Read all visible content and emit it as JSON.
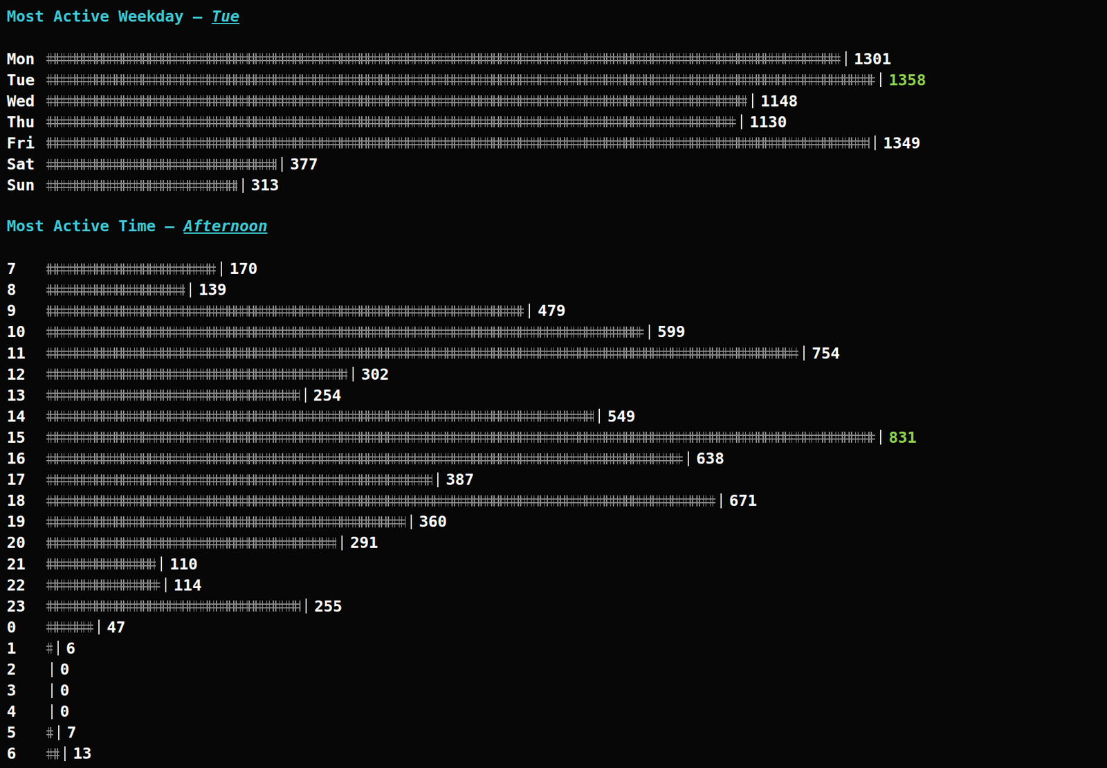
{
  "chart_data": [
    {
      "type": "bar",
      "orientation": "horizontal",
      "title": "Most Active Weekday –",
      "subtitle": "Tue",
      "categories": [
        "Mon",
        "Tue",
        "Wed",
        "Thu",
        "Fri",
        "Sat",
        "Sun"
      ],
      "values": [
        1301,
        1358,
        1148,
        1130,
        1349,
        377,
        313
      ],
      "xlim": [
        0,
        1358
      ],
      "tick_labels": false,
      "data_labels": true,
      "color": "#8a8a8a"
    },
    {
      "type": "bar",
      "orientation": "horizontal",
      "title": "Most Active Time –",
      "subtitle": "Afternoon",
      "categories": [
        "7",
        "8",
        "9",
        "10",
        "11",
        "12",
        "13",
        "14",
        "15",
        "16",
        "17",
        "18",
        "19",
        "20",
        "21",
        "22",
        "23",
        "0",
        "1",
        "2",
        "3",
        "4",
        "5",
        "6"
      ],
      "values": [
        170,
        139,
        479,
        599,
        754,
        302,
        254,
        549,
        831,
        638,
        387,
        671,
        360,
        291,
        110,
        114,
        255,
        47,
        6,
        0,
        0,
        0,
        7,
        13
      ],
      "xlim": [
        0,
        831
      ],
      "tick_labels": false,
      "data_labels": true,
      "color": "#8a8a8a"
    }
  ]
}
